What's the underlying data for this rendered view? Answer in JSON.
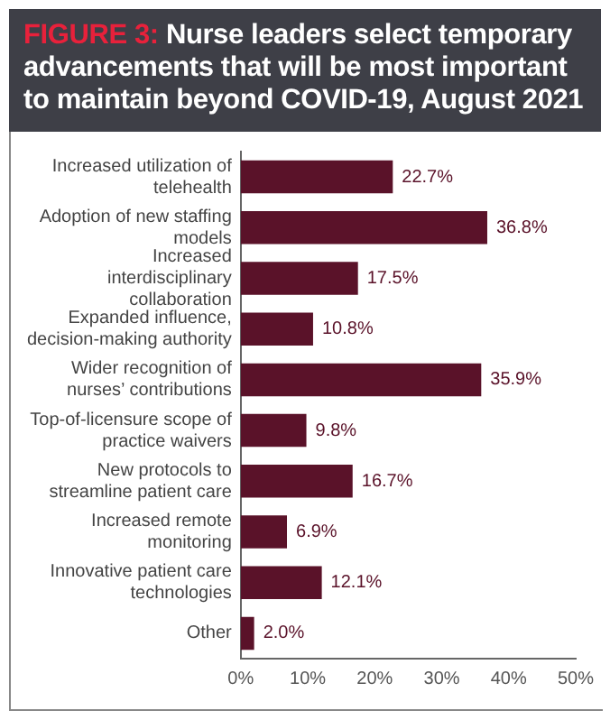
{
  "chart_data": {
    "type": "bar",
    "orientation": "horizontal",
    "title": "FIGURE 3: Nurse leaders select temporary advancements that will be most important to maintain beyond COVID-19, August 2021",
    "categories": [
      "Increased utilization of telehealth",
      "Adoption of new staffing models",
      "Increased interdisciplinary collaboration",
      "Expanded influence, decision-making authority",
      "Wider recognition of nurses’ contributions",
      "Top-of-licensure scope of practice waivers",
      "New protocols to streamline patient care",
      "Increased remote monitoring",
      "Innovative patient care technologies",
      "Other"
    ],
    "values": [
      22.7,
      36.8,
      17.5,
      10.8,
      35.9,
      9.8,
      16.7,
      6.9,
      12.1,
      2.0
    ],
    "value_labels": [
      "22.7%",
      "36.8%",
      "17.5%",
      "10.8%",
      "35.9%",
      "9.8%",
      "16.7%",
      "6.9%",
      "12.1%",
      "2.0%"
    ],
    "color": "#5a1229",
    "xlim": [
      0,
      50
    ],
    "xticks": [
      {
        "value": 0,
        "label": "0%"
      },
      {
        "value": 10,
        "label": "10%"
      },
      {
        "value": 20,
        "label": "20%"
      },
      {
        "value": 30,
        "label": "30%"
      },
      {
        "value": 40,
        "label": "40%"
      },
      {
        "value": 50,
        "label": "50%"
      }
    ],
    "grid": false,
    "legend": false
  }
}
